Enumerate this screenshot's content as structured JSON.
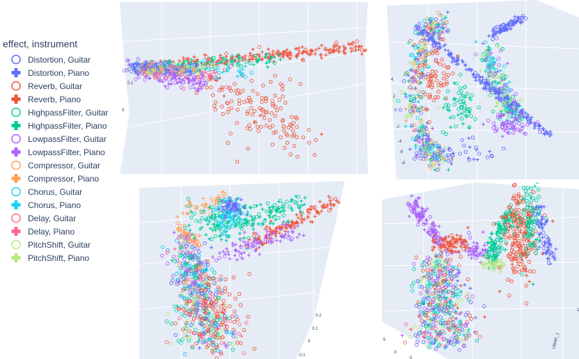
{
  "legend": {
    "title": "effect, instrument",
    "items": [
      {
        "label": "Distortion, Guitar",
        "color": "#636efa",
        "marker": "circle-open"
      },
      {
        "label": "Distortion, Piano",
        "color": "#636efa",
        "marker": "cross"
      },
      {
        "label": "Reverb, Guitar",
        "color": "#ef553b",
        "marker": "circle-open"
      },
      {
        "label": "Reverb, Piano",
        "color": "#ef553b",
        "marker": "cross"
      },
      {
        "label": "HighpassFilter, Guitar",
        "color": "#00cc96",
        "marker": "circle-open"
      },
      {
        "label": "HighpassFilter, Piano",
        "color": "#00cc96",
        "marker": "cross"
      },
      {
        "label": "LowpassFilter, Guitar",
        "color": "#ab63fa",
        "marker": "circle-open"
      },
      {
        "label": "LowpassFilter, Piano",
        "color": "#ab63fa",
        "marker": "cross"
      },
      {
        "label": "Compressor, Guitar",
        "color": "#ffa15a",
        "marker": "circle-open"
      },
      {
        "label": "Compressor, Piano",
        "color": "#ffa15a",
        "marker": "cross"
      },
      {
        "label": "Chorus, Guitar",
        "color": "#19d3f3",
        "marker": "circle-open"
      },
      {
        "label": "Chorus, Piano",
        "color": "#19d3f3",
        "marker": "cross"
      },
      {
        "label": "Delay, Guitar",
        "color": "#ff6692",
        "marker": "circle-open"
      },
      {
        "label": "Delay, Piano",
        "color": "#ff6692",
        "marker": "cross"
      },
      {
        "label": "PitchShift, Guitar",
        "color": "#b6e880",
        "marker": "circle-open"
      },
      {
        "label": "PitchShift, Piano",
        "color": "#b6e880",
        "marker": "cross"
      }
    ]
  },
  "chart_data": [
    {
      "type": "scatter",
      "dims": 3,
      "ticks": [
        "0.1",
        "0"
      ]
    },
    {
      "type": "scatter",
      "dims": 3,
      "ticks": [
        "4",
        "2",
        "0",
        "-2",
        "-4",
        "-6",
        "-8"
      ]
    },
    {
      "type": "scatter",
      "dims": 3,
      "ticks": [
        "0.2",
        "0.1",
        "0",
        "-0.1"
      ]
    },
    {
      "type": "scatter",
      "dims": 3,
      "ticks": [
        "10",
        "5",
        "0",
        "5"
      ],
      "axis_title": "UMAP_1"
    }
  ]
}
